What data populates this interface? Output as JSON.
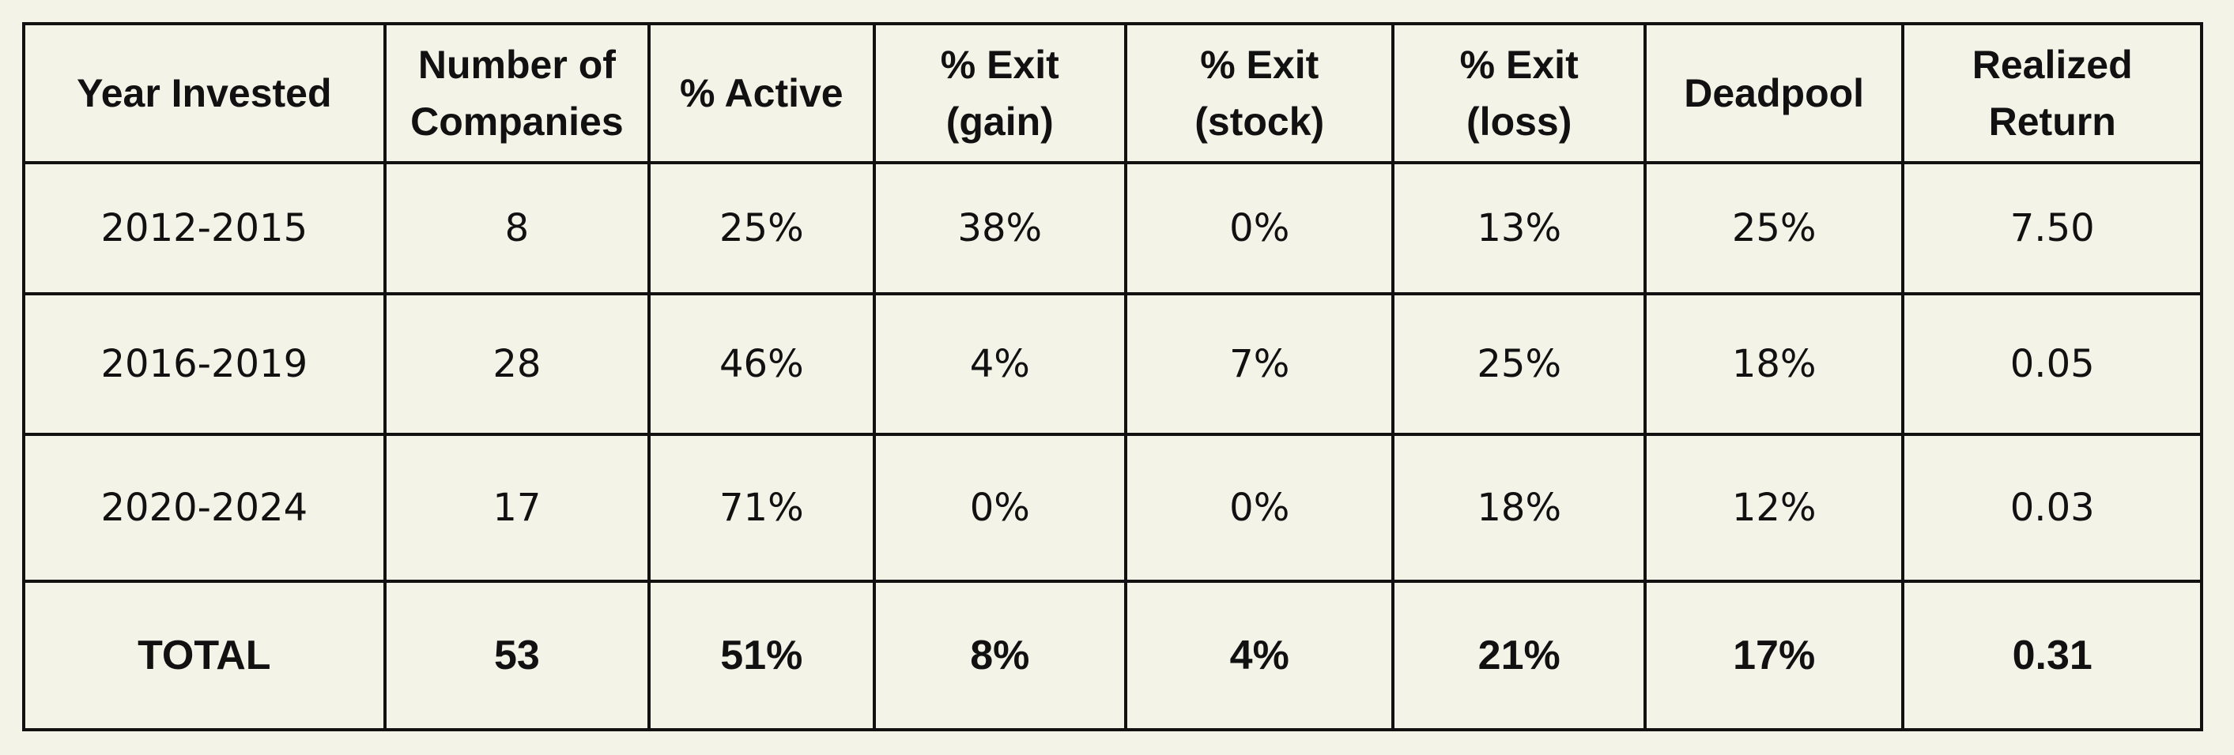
{
  "chart_data": {
    "type": "table",
    "columns": [
      "Year Invested",
      "Number of\nCompanies",
      "% Active",
      "% Exit\n(gain)",
      "% Exit\n(stock)",
      "% Exit\n(loss)",
      "Deadpool",
      "Realized\nReturn"
    ],
    "rows": [
      [
        "2012-2015",
        "8",
        "25%",
        "38%",
        "0%",
        "13%",
        "25%",
        "7.50"
      ],
      [
        "2016-2019",
        "28",
        "46%",
        "4%",
        "7%",
        "25%",
        "18%",
        "0.05"
      ],
      [
        "2020-2024",
        "17",
        "71%",
        "0%",
        "0%",
        "18%",
        "12%",
        "0.03"
      ]
    ],
    "total": [
      "TOTAL",
      "53",
      "51%",
      "8%",
      "4%",
      "21%",
      "17%",
      "0.31"
    ],
    "colors": {
      "background": "#f4f3e8",
      "border": "#111111",
      "text": "#111111"
    }
  }
}
